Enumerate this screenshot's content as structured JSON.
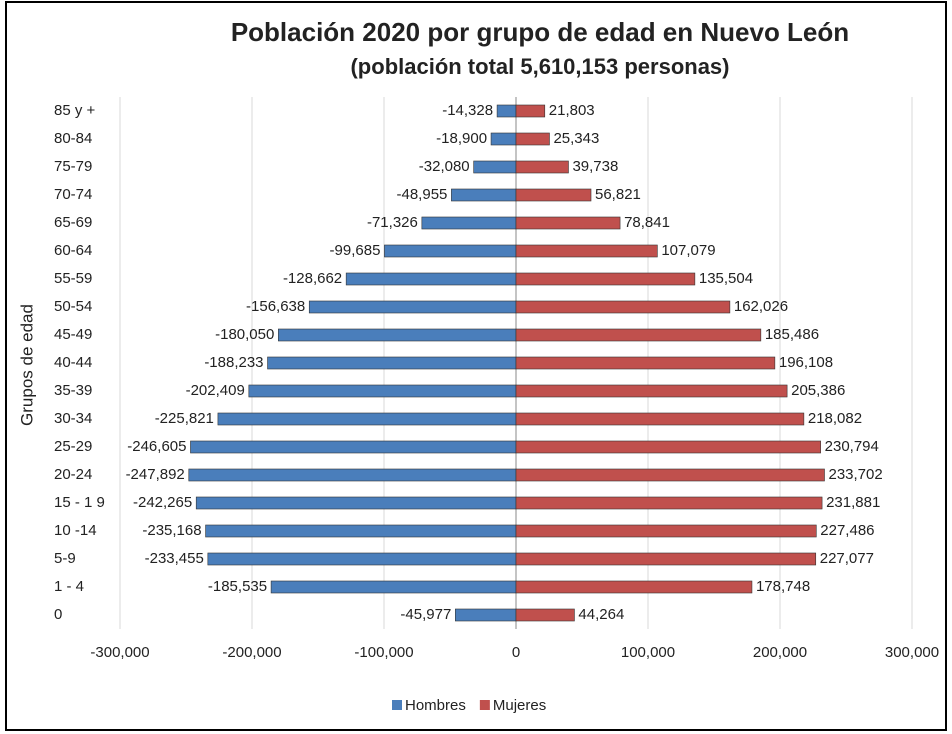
{
  "chart_data": {
    "type": "bar",
    "orientation": "horizontal",
    "stacked": true,
    "title": "Población 2020 por grupo de edad en Nuevo León",
    "subtitle": "(población total 5,610,153 personas)",
    "y_label": "Grupos de edad",
    "categories": [
      "85 y +",
      "80-84",
      "75-79",
      "70-74",
      "65-69",
      "60-64",
      "55-59",
      "50-54",
      "45-49",
      "40-44",
      "35-39",
      "30-34",
      "25-29",
      "20-24",
      "15 - 1 9",
      "10 -14",
      "5-9",
      "1 - 4",
      "0"
    ],
    "series": [
      {
        "name": "Hombres",
        "color": "#4a7ebb",
        "values": [
          -14328,
          -18900,
          -32080,
          -48955,
          -71326,
          -99685,
          -128662,
          -156638,
          -180050,
          -188233,
          -202409,
          -225821,
          -246605,
          -247892,
          -242265,
          -235168,
          -233455,
          -185535,
          -45977
        ],
        "value_labels": [
          "-14,328",
          "-18,900",
          "-32,080",
          "-48,955",
          "-71,326",
          "-99,685",
          "-128,662",
          "-156,638",
          "-180,050",
          "-188,233",
          "-202,409",
          "-225,821",
          "-246,605",
          "-247,892",
          "-242,265",
          "-235,168",
          "-233,455",
          "-185,535",
          "-45,977"
        ]
      },
      {
        "name": "Mujeres",
        "color": "#c0504d",
        "values": [
          21803,
          25343,
          39738,
          56821,
          78841,
          107079,
          135504,
          162026,
          185486,
          196108,
          205386,
          218082,
          230794,
          233702,
          231881,
          227486,
          227077,
          178748,
          44264
        ],
        "value_labels": [
          "21,803",
          "25,343",
          "39,738",
          "56,821",
          "78,841",
          "107,079",
          "135,504",
          "162,026",
          "185,486",
          "196,108",
          "205,386",
          "218,082",
          "230,794",
          "233,702",
          "231,881",
          "227,486",
          "227,077",
          "178,748",
          "44,264"
        ]
      }
    ],
    "xlim": [
      -300000,
      300000
    ],
    "xticks": [
      {
        "value": -300000,
        "label": "-300,000"
      },
      {
        "value": -200000,
        "label": "-200,000"
      },
      {
        "value": -100000,
        "label": "-100,000"
      },
      0,
      {
        "value": 100000,
        "label": "100,000"
      },
      {
        "value": 200000,
        "label": "200,000"
      },
      {
        "value": 300000,
        "label": "300,000"
      }
    ],
    "grid": true,
    "legend": "bottom"
  }
}
